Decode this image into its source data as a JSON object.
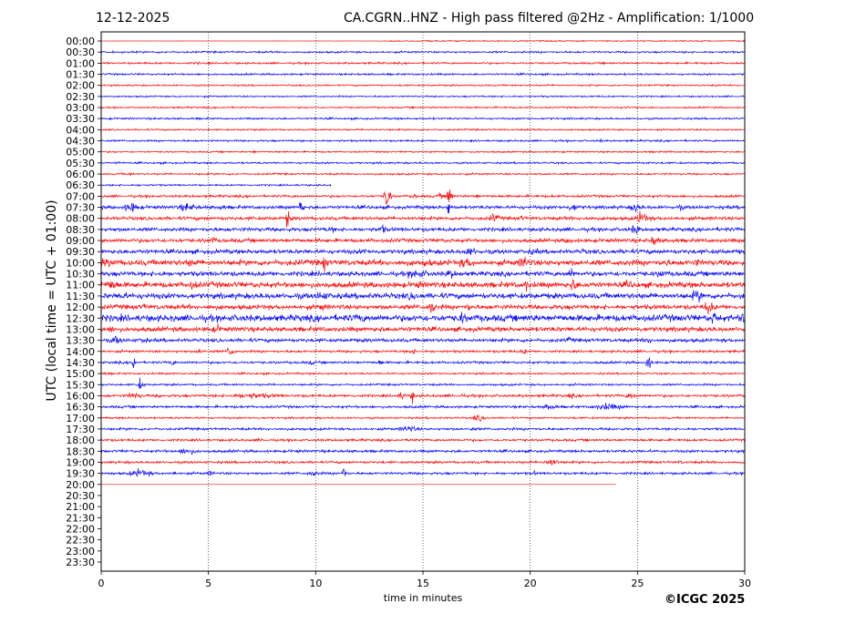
{
  "header": {
    "date": "12-12-2025",
    "title": "CA.CGRN..HNZ - High pass filtered @2Hz - Amplification: 1/1000"
  },
  "footer": {
    "copyright": "©ICGC 2025"
  },
  "chart_data": {
    "type": "line",
    "subtype": "helicorder",
    "xlabel": "time in minutes",
    "ylabel": "UTC (local time = UTC + 01:00)",
    "xlim": [
      0,
      30
    ],
    "xticks": [
      0,
      5,
      10,
      15,
      20,
      25,
      30
    ],
    "grid": "vertical dotted at x ticks",
    "colors": {
      "even_rows": "#ff0000",
      "odd_rows": "#0000ff"
    },
    "row_labels": [
      "00:00",
      "00:30",
      "01:00",
      "01:30",
      "02:00",
      "02:30",
      "03:00",
      "03:30",
      "04:00",
      "04:30",
      "05:00",
      "05:30",
      "06:00",
      "06:30",
      "07:00",
      "07:30",
      "08:00",
      "08:30",
      "09:00",
      "09:30",
      "10:00",
      "10:30",
      "11:00",
      "11:30",
      "12:00",
      "12:30",
      "13:00",
      "13:30",
      "14:00",
      "14:30",
      "15:00",
      "15:30",
      "16:00",
      "16:30",
      "17:00",
      "17:30",
      "18:00",
      "18:30",
      "19:00",
      "19:30",
      "20:00",
      "20:30",
      "21:00",
      "21:30",
      "22:00",
      "22:30",
      "23:00",
      "23:30"
    ],
    "traces": [
      {
        "row": "00:00",
        "noise": 1.0,
        "quiet_until": 13,
        "events": []
      },
      {
        "row": "00:30",
        "noise": 1.4,
        "events": [
          [
            19.7,
            2.5,
            0.2
          ]
        ]
      },
      {
        "row": "01:00",
        "noise": 1.4,
        "events": [
          [
            4.5,
            2.5,
            0.3
          ]
        ]
      },
      {
        "row": "01:30",
        "noise": 1.4,
        "events": [
          [
            12.9,
            2,
            0.2
          ]
        ]
      },
      {
        "row": "02:00",
        "noise": 1.2,
        "events": []
      },
      {
        "row": "02:30",
        "noise": 1.2,
        "events": []
      },
      {
        "row": "03:00",
        "noise": 1.2,
        "events": []
      },
      {
        "row": "03:30",
        "noise": 1.4,
        "events": [
          [
            22.4,
            2,
            0.2
          ]
        ]
      },
      {
        "row": "04:00",
        "noise": 1.2,
        "events": []
      },
      {
        "row": "04:30",
        "noise": 1.4,
        "events": [
          [
            23.3,
            3,
            0.3
          ]
        ]
      },
      {
        "row": "05:00",
        "noise": 1.2,
        "events": [
          [
            7.1,
            3,
            0.2
          ],
          [
            26.5,
            2.5,
            0.2
          ]
        ]
      },
      {
        "row": "05:30",
        "noise": 1.4,
        "events": [
          [
            0.8,
            3,
            0.3
          ],
          [
            25.5,
            3,
            0.2
          ]
        ]
      },
      {
        "row": "06:00",
        "noise": 1.4,
        "events": [
          [
            1.3,
            3,
            0.3
          ]
        ]
      },
      {
        "row": "06:30",
        "noise": 1.3,
        "active_until": 10.7,
        "events": [
          [
            1.8,
            2,
            0.2
          ],
          [
            16.7,
            3,
            0.8
          ],
          [
            17.7,
            3,
            0.5
          ]
        ]
      },
      {
        "row": "07:00",
        "noise": 1.8,
        "events": [
          [
            13.3,
            30,
            0.15
          ],
          [
            14.6,
            4,
            0.3
          ],
          [
            15.8,
            5,
            0.3
          ],
          [
            16.2,
            40,
            0.1
          ],
          [
            17.5,
            4,
            0.3
          ]
        ]
      },
      {
        "row": "07:30",
        "noise": 2.5,
        "events": [
          [
            1.4,
            9,
            0.6
          ],
          [
            4.0,
            7,
            0.8
          ],
          [
            5.6,
            5,
            0.5
          ],
          [
            9.3,
            25,
            0.1
          ],
          [
            16.2,
            18,
            0.1
          ],
          [
            22.0,
            7,
            0.5
          ],
          [
            24.9,
            9,
            0.4
          ],
          [
            27.0,
            5,
            0.4
          ]
        ]
      },
      {
        "row": "08:00",
        "noise": 2.5,
        "events": [
          [
            8.7,
            25,
            0.1
          ],
          [
            18.3,
            8,
            0.4
          ],
          [
            19.6,
            5,
            0.3
          ],
          [
            22.6,
            5,
            0.3
          ],
          [
            25.2,
            12,
            0.4
          ]
        ]
      },
      {
        "row": "08:30",
        "noise": 2.8,
        "events": [
          [
            5.2,
            4,
            0.5
          ],
          [
            10.7,
            5,
            0.8
          ],
          [
            13.1,
            8,
            0.3
          ],
          [
            24.9,
            10,
            0.3
          ]
        ]
      },
      {
        "row": "09:00",
        "noise": 2.8,
        "events": [
          [
            5.2,
            6,
            0.4
          ],
          [
            15.8,
            5,
            0.3
          ],
          [
            21.8,
            6,
            0.4
          ],
          [
            25.8,
            10,
            0.3
          ]
        ]
      },
      {
        "row": "09:30",
        "noise": 3.2,
        "events": [
          [
            12.3,
            5,
            0.8
          ],
          [
            17.2,
            8,
            0.6
          ],
          [
            20.2,
            6,
            0.5
          ],
          [
            22.5,
            5,
            0.5
          ],
          [
            24.5,
            6,
            0.3
          ]
        ]
      },
      {
        "row": "10:00",
        "noise": 4.2,
        "events": [
          [
            0.3,
            8,
            0.8
          ],
          [
            4.2,
            7,
            0.8
          ],
          [
            10.4,
            15,
            0.2
          ],
          [
            15.2,
            8,
            0.5
          ],
          [
            17.0,
            10,
            0.6
          ],
          [
            19.7,
            12,
            0.4
          ],
          [
            26.3,
            8,
            0.4
          ],
          [
            27.8,
            8,
            0.3
          ]
        ]
      },
      {
        "row": "10:30",
        "noise": 3.5,
        "events": [
          [
            2.8,
            6,
            0.5
          ],
          [
            14.7,
            8,
            1.0
          ],
          [
            16.3,
            8,
            0.5
          ],
          [
            21.9,
            10,
            0.3
          ],
          [
            26.1,
            8,
            0.4
          ]
        ]
      },
      {
        "row": "11:00",
        "noise": 4.2,
        "events": [
          [
            0.5,
            10,
            0.6
          ],
          [
            4.3,
            8,
            0.6
          ],
          [
            14.8,
            7,
            0.6
          ],
          [
            19.8,
            12,
            0.2
          ],
          [
            22.0,
            12,
            0.4
          ],
          [
            24.6,
            8,
            0.5
          ]
        ]
      },
      {
        "row": "11:30",
        "noise": 4.2,
        "events": [
          [
            1.0,
            8,
            0.5
          ],
          [
            10.3,
            8,
            0.8
          ],
          [
            12.7,
            6,
            0.3
          ],
          [
            14.5,
            8,
            0.5
          ],
          [
            27.8,
            10,
            0.6
          ]
        ]
      },
      {
        "row": "12:00",
        "noise": 3.5,
        "events": [
          [
            2.0,
            6,
            0.5
          ],
          [
            10.3,
            7,
            0.5
          ],
          [
            15.4,
            15,
            0.2
          ],
          [
            17.1,
            8,
            0.3
          ],
          [
            28.3,
            12,
            0.4
          ]
        ]
      },
      {
        "row": "12:30",
        "noise": 5.0,
        "events": [
          [
            12.1,
            8,
            0.8
          ],
          [
            16.8,
            10,
            0.5
          ],
          [
            28.6,
            12,
            0.4
          ],
          [
            29.9,
            15,
            0.2
          ]
        ]
      },
      {
        "row": "13:00",
        "noise": 3.5,
        "events": [
          [
            0.5,
            6,
            0.6
          ],
          [
            5.4,
            8,
            0.4
          ],
          [
            13.0,
            5,
            0.6
          ]
        ]
      },
      {
        "row": "13:30",
        "noise": 2.6,
        "events": [
          [
            0.7,
            8,
            0.4
          ],
          [
            2.0,
            6,
            0.4
          ],
          [
            21.8,
            5,
            0.5
          ],
          [
            25.5,
            6,
            0.4
          ]
        ]
      },
      {
        "row": "14:00",
        "noise": 1.8,
        "events": [
          [
            4.6,
            5,
            0.3
          ],
          [
            6.0,
            12,
            0.2
          ],
          [
            14.5,
            5,
            0.4
          ],
          [
            19.7,
            5,
            0.3
          ]
        ]
      },
      {
        "row": "14:30",
        "noise": 1.8,
        "events": [
          [
            1.5,
            18,
            0.1
          ],
          [
            3.3,
            5,
            0.3
          ],
          [
            9.8,
            4,
            0.3
          ],
          [
            13.0,
            5,
            0.3
          ],
          [
            25.5,
            15,
            0.15
          ]
        ]
      },
      {
        "row": "15:00",
        "noise": 1.4,
        "events": [
          [
            0.2,
            2.5,
            0.3
          ]
        ]
      },
      {
        "row": "15:30",
        "noise": 1.5,
        "events": [
          [
            1.8,
            10,
            0.2
          ]
        ]
      },
      {
        "row": "16:00",
        "noise": 2.0,
        "events": [
          [
            1.5,
            6,
            0.6
          ],
          [
            2.7,
            4,
            0.2
          ],
          [
            7.0,
            5,
            2.4
          ],
          [
            14.0,
            6,
            0.5
          ],
          [
            14.5,
            15,
            0.1
          ],
          [
            16.8,
            4,
            0.3
          ],
          [
            21.9,
            5,
            0.3
          ],
          [
            24.7,
            6,
            0.4
          ]
        ]
      },
      {
        "row": "16:30",
        "noise": 1.8,
        "events": [
          [
            20.9,
            6,
            0.5
          ],
          [
            23.6,
            6,
            1.2
          ]
        ]
      },
      {
        "row": "17:00",
        "noise": 1.4,
        "events": [
          [
            17.6,
            6,
            0.5
          ]
        ]
      },
      {
        "row": "17:30",
        "noise": 1.8,
        "events": [
          [
            14.3,
            6,
            0.7
          ],
          [
            17.3,
            4,
            0.3
          ]
        ]
      },
      {
        "row": "18:00",
        "noise": 1.8,
        "events": [
          [
            7.5,
            3,
            0.5
          ],
          [
            14.5,
            3,
            0.6
          ]
        ]
      },
      {
        "row": "18:30",
        "noise": 2.0,
        "events": [
          [
            4.0,
            6,
            0.8
          ],
          [
            9.2,
            3,
            0.3
          ]
        ]
      },
      {
        "row": "19:00",
        "noise": 1.8,
        "events": [
          [
            21.0,
            7,
            0.5
          ],
          [
            27.0,
            4,
            0.2
          ]
        ]
      },
      {
        "row": "19:30",
        "noise": 1.8,
        "events": [
          [
            1.8,
            7,
            0.8
          ],
          [
            3.4,
            5,
            0.2
          ],
          [
            5.1,
            5,
            0.3
          ],
          [
            9.9,
            5,
            0.5
          ],
          [
            11.3,
            18,
            0.1
          ],
          [
            20.2,
            4,
            0.2
          ]
        ]
      },
      {
        "row": "20:00",
        "noise": 0.0,
        "active_until": 24,
        "events": []
      }
    ]
  }
}
